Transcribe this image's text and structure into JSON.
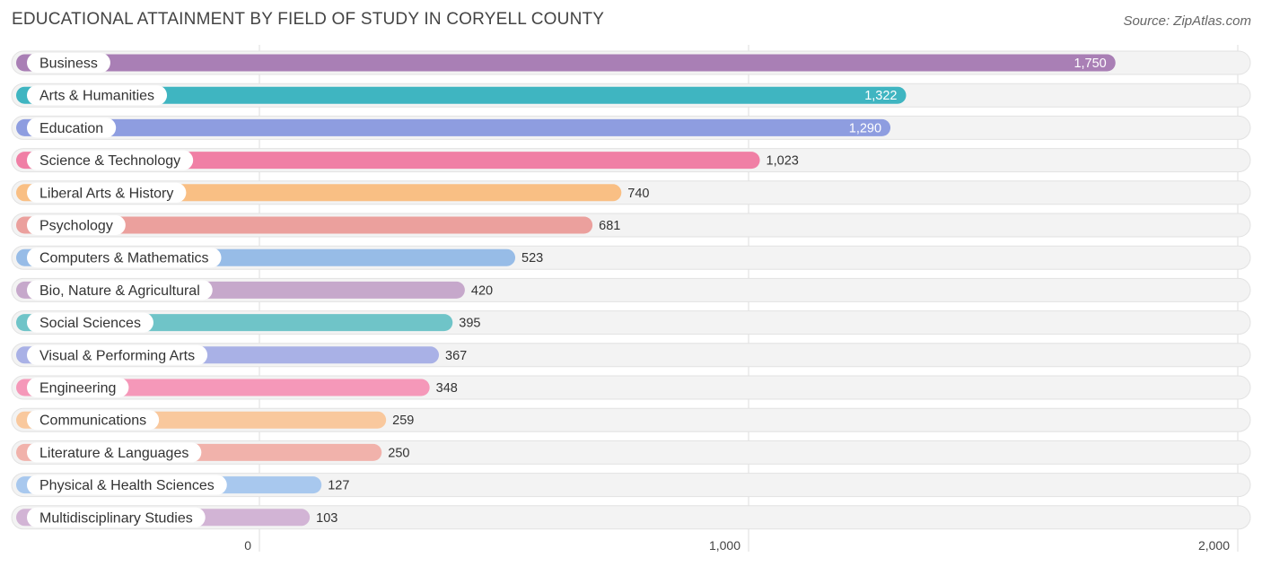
{
  "chart_data": {
    "type": "bar",
    "orientation": "horizontal",
    "title": "EDUCATIONAL ATTAINMENT BY FIELD OF STUDY IN CORYELL COUNTY",
    "source": "Source: ZipAtlas.com",
    "categories": [
      "Business",
      "Arts & Humanities",
      "Education",
      "Science & Technology",
      "Liberal Arts & History",
      "Psychology",
      "Computers & Mathematics",
      "Bio, Nature & Agricultural",
      "Social Sciences",
      "Visual & Performing Arts",
      "Engineering",
      "Communications",
      "Literature & Languages",
      "Physical & Health Sciences",
      "Multidisciplinary Studies"
    ],
    "values": [
      1750,
      1322,
      1290,
      1023,
      740,
      681,
      523,
      420,
      395,
      367,
      348,
      259,
      250,
      127,
      103
    ],
    "value_labels": [
      "1,750",
      "1,322",
      "1,290",
      "1,023",
      "740",
      "681",
      "523",
      "420",
      "395",
      "367",
      "348",
      "259",
      "250",
      "127",
      "103"
    ],
    "colors": [
      "#a97fb5",
      "#3fb5c1",
      "#8e9de0",
      "#f07fa5",
      "#f9bf84",
      "#eba09d",
      "#97bce7",
      "#c6a8cb",
      "#6fc4c8",
      "#a9b1e6",
      "#f598b9",
      "#f9c89d",
      "#f1b2ab",
      "#a8c8ee",
      "#d2b4d5"
    ],
    "xlim": [
      0,
      2000
    ],
    "ticks": [
      0,
      1000,
      2000
    ],
    "tick_labels": [
      "0",
      "1,000",
      "2,000"
    ],
    "xlabel": "",
    "ylabel": "",
    "grid": true
  }
}
